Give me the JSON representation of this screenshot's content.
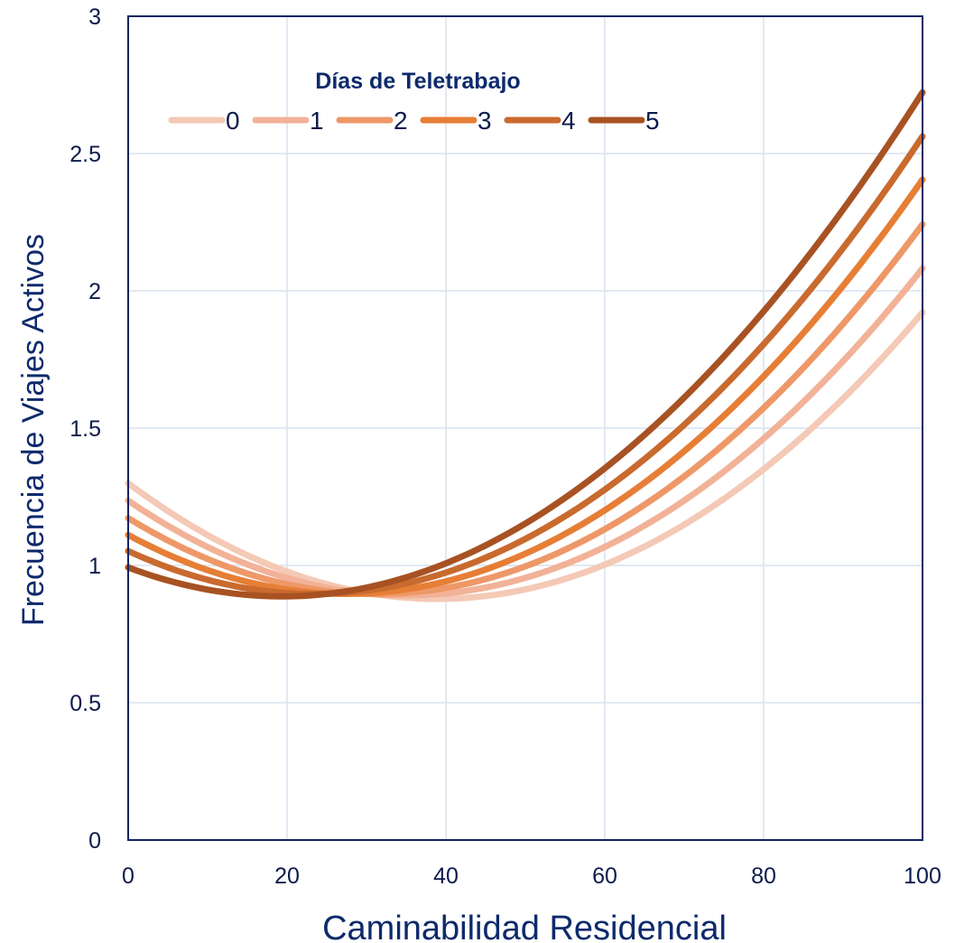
{
  "chart_data": {
    "type": "line",
    "xlabel": "Caminabilidad Residencial",
    "ylabel": "Frecuencia de Viajes Activos",
    "xlim": [
      0,
      100
    ],
    "ylim": [
      0,
      3
    ],
    "xticks": [
      0,
      20,
      40,
      60,
      80,
      100
    ],
    "yticks": [
      0,
      0.5,
      1,
      1.5,
      2,
      2.5,
      3
    ],
    "ytick_labels": [
      "0",
      "0.5",
      "1",
      "1.5",
      "2",
      "2.5",
      "3"
    ],
    "grid": true,
    "legend": {
      "title": "Días de Teletrabajo",
      "placement": "top-left"
    },
    "series": [
      {
        "name": "0",
        "color": "#f4c9b5",
        "x": [
          0,
          20,
          40,
          60,
          80,
          100
        ],
        "y": [
          1.29,
          1.0,
          0.87,
          0.99,
          1.36,
          1.92
        ]
      },
      {
        "name": "1",
        "color": "#f2b298",
        "x": [
          0,
          20,
          40,
          60,
          80,
          100
        ],
        "y": [
          1.23,
          0.97,
          0.89,
          1.06,
          1.47,
          2.08
        ]
      },
      {
        "name": "2",
        "color": "#ee9868",
        "x": [
          0,
          20,
          40,
          60,
          80,
          100
        ],
        "y": [
          1.17,
          0.94,
          0.91,
          1.13,
          1.58,
          2.24
        ]
      },
      {
        "name": "3",
        "color": "#e67e36",
        "x": [
          0,
          20,
          40,
          60,
          80,
          100
        ],
        "y": [
          1.11,
          0.92,
          0.93,
          1.2,
          1.7,
          2.4
        ]
      },
      {
        "name": "4",
        "color": "#c96a2e",
        "x": [
          0,
          20,
          40,
          60,
          80,
          100
        ],
        "y": [
          1.05,
          0.91,
          0.96,
          1.28,
          1.81,
          2.56
        ]
      },
      {
        "name": "5",
        "color": "#a85223",
        "x": [
          0,
          20,
          40,
          60,
          80,
          100
        ],
        "y": [
          0.99,
          0.9,
          0.99,
          1.36,
          1.93,
          2.72
        ]
      }
    ]
  }
}
